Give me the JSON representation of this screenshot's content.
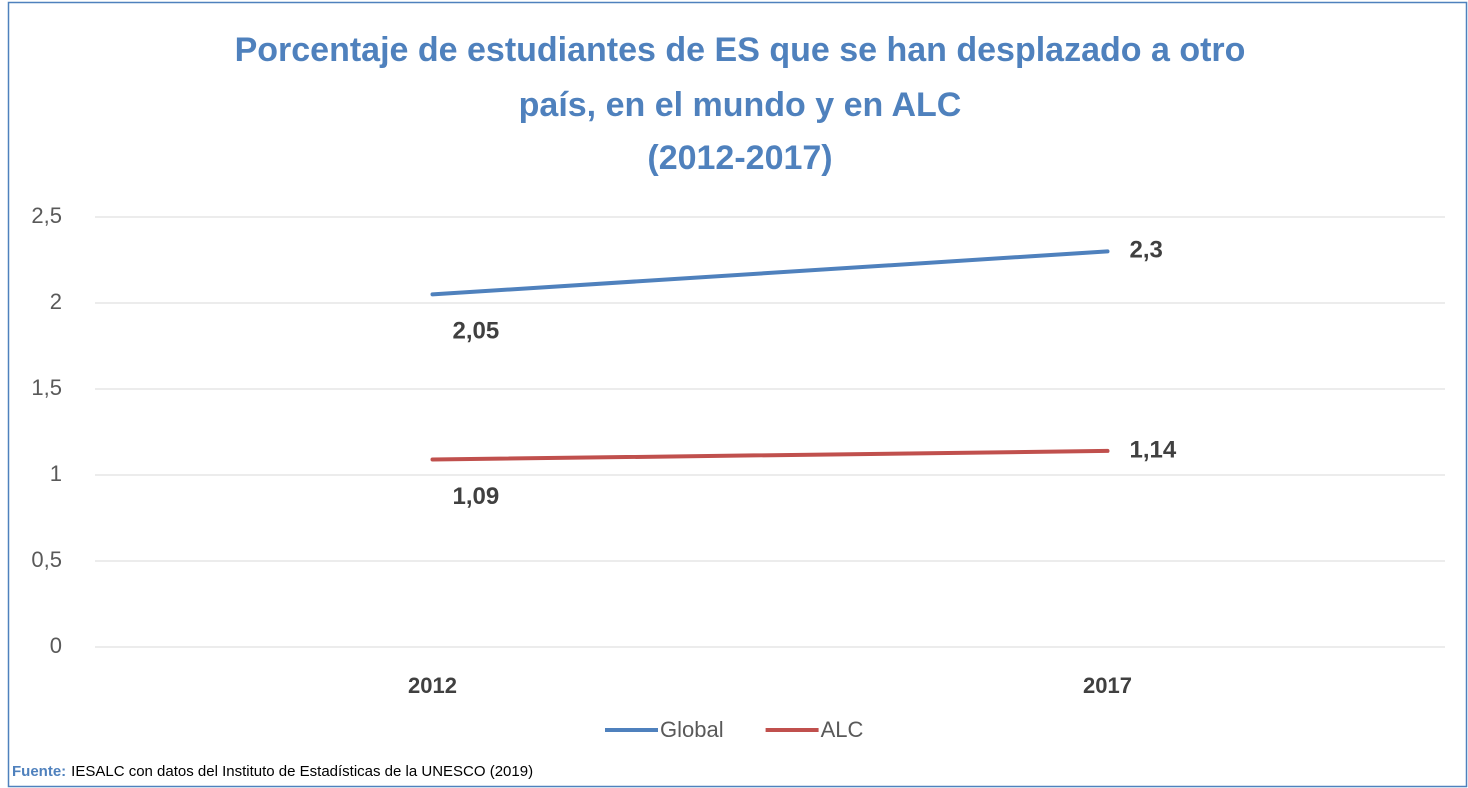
{
  "chart_data": {
    "type": "line",
    "title": [
      "Porcentaje de estudiantes de ES que se han desplazado a otro",
      "país, en el mundo y en ALC",
      "(2012-2017)"
    ],
    "categories": [
      "2012",
      "2017"
    ],
    "series": [
      {
        "name": "Global",
        "color": "#4f81bd",
        "values": [
          2.05,
          2.3
        ],
        "value_labels": [
          "2,05",
          "2,3"
        ]
      },
      {
        "name": "ALC",
        "color": "#c0504d",
        "values": [
          1.09,
          1.14
        ],
        "value_labels": [
          "1,09",
          "1,14"
        ]
      }
    ],
    "ylim": [
      0,
      2.5
    ],
    "yticks": [
      0,
      {
        "value": 0.5,
        "label": "0,5"
      },
      1,
      {
        "value": 1.5,
        "label": "1,5"
      },
      2,
      {
        "value": 2.5,
        "label": "2,5"
      }
    ],
    "grid": true,
    "legend": "bottom",
    "source_label": "Fuente:",
    "source": "IESALC con datos del Instituto de Estadísticas de la UNESCO (2019)"
  }
}
